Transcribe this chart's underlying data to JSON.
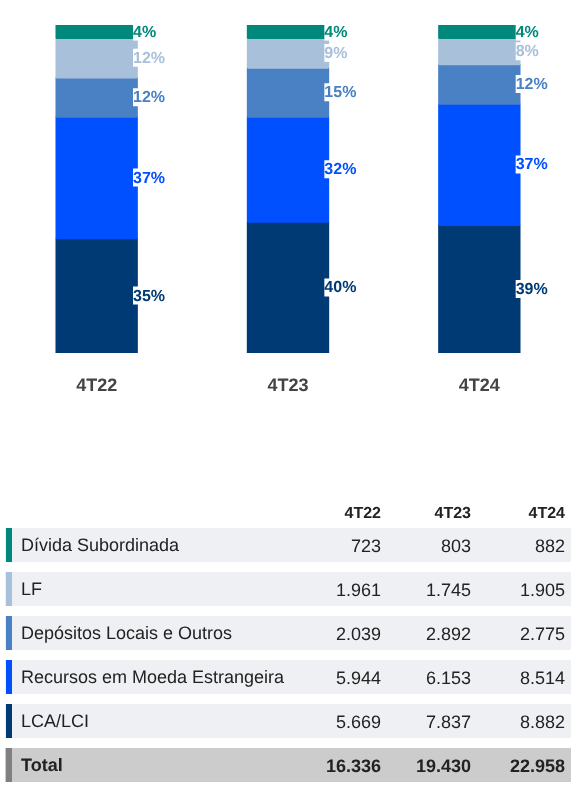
{
  "chart_data": [
    {
      "type": "bar",
      "stacked": true,
      "categories": [
        "4T22",
        "4T23",
        "4T24"
      ],
      "series": [
        {
          "color": "#003a75",
          "values": [
            35,
            40,
            39
          ],
          "value_labels": [
            "35%",
            "40%",
            "39%"
          ]
        },
        {
          "color": "#0050ff",
          "values": [
            37,
            32,
            37
          ],
          "value_labels": [
            "37%",
            "32%",
            "37%"
          ]
        },
        {
          "color": "#4a80c4",
          "values": [
            12,
            15,
            12
          ],
          "value_labels": [
            "12%",
            "15%",
            "12%"
          ]
        },
        {
          "color": "#a9c0da",
          "values": [
            12,
            9,
            8
          ],
          "value_labels": [
            "12%",
            "9%",
            "8%"
          ]
        },
        {
          "color": "#00897b",
          "values": [
            4,
            4,
            4
          ],
          "value_labels": [
            "4%",
            "4%",
            "4%"
          ]
        }
      ],
      "grid": false
    },
    {
      "type": "other",
      "categories": [
        "4T22",
        "4T23",
        "4T24"
      ],
      "series": [
        {
          "name": "Dívida Subordinada",
          "color": "#00897b",
          "values": [
            723,
            803,
            882
          ],
          "value_labels": [
            "723",
            "803",
            "882"
          ]
        },
        {
          "name": "LF",
          "color": "#a9c0da",
          "values": [
            1961,
            1745,
            1905
          ],
          "value_labels": [
            "1.961",
            "1.745",
            "1.905"
          ]
        },
        {
          "name": "Depósitos Locais e Outros",
          "color": "#4a80c4",
          "values": [
            2039,
            2892,
            2775
          ],
          "value_labels": [
            "2.039",
            "2.892",
            "2.775"
          ]
        },
        {
          "name": "Recursos em Moeda Estrangeira",
          "color": "#0050ff",
          "values": [
            5944,
            6153,
            8514
          ],
          "value_labels": [
            "5.944",
            "6.153",
            "8.514"
          ]
        },
        {
          "name": "LCA/LCI",
          "color": "#003a75",
          "values": [
            5669,
            7837,
            8882
          ],
          "value_labels": [
            "5.669",
            "7.837",
            "8.882"
          ]
        },
        {
          "name": "Total",
          "color": "#808080",
          "values": [
            16336,
            19430,
            22958
          ],
          "value_labels": [
            "16.336",
            "19.430",
            "22.958"
          ]
        }
      ]
    }
  ]
}
